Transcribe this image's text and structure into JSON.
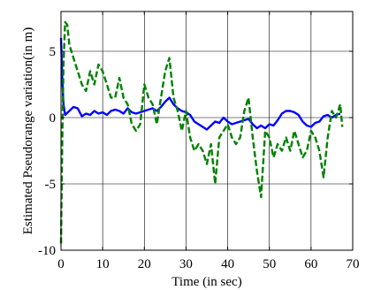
{
  "chart_data": {
    "type": "line",
    "title": "",
    "xlabel": "Time (in sec)",
    "ylabel": "Estimated Pseudorange variation(in m)",
    "xlim": [
      0,
      70
    ],
    "ylim": [
      -10,
      8
    ],
    "xticks": [
      0,
      10,
      20,
      30,
      40,
      50,
      60,
      70
    ],
    "yticks": [
      -10,
      -5,
      0,
      5
    ],
    "grid": true,
    "series": [
      {
        "color": "#0000ff",
        "line_style": "solid",
        "x": [
          0,
          0.3,
          0.6,
          1,
          2,
          3,
          4,
          5,
          6,
          7,
          8,
          9,
          10,
          11,
          12,
          13,
          14,
          15,
          16,
          17,
          18,
          19,
          20,
          21,
          22,
          23,
          24,
          25,
          26,
          27,
          28,
          29,
          30,
          31,
          32,
          33,
          34,
          35,
          36,
          37,
          38,
          39,
          40,
          41,
          42,
          43,
          44,
          45,
          46,
          47,
          48,
          49,
          50,
          51,
          52,
          53,
          54,
          55,
          56,
          57,
          58,
          59,
          60,
          61,
          62,
          63,
          64,
          65,
          66,
          67
        ],
        "y": [
          6,
          3,
          1,
          0.2,
          0.5,
          0.8,
          0.7,
          0.1,
          0.3,
          0.2,
          0.5,
          0.3,
          0.4,
          0.2,
          0.5,
          0.6,
          0.5,
          0.3,
          0.7,
          0.4,
          0.3,
          0.4,
          0.5,
          0.6,
          0.7,
          0.5,
          0.8,
          1.2,
          1.5,
          1.0,
          0.7,
          0.5,
          0.4,
          0.2,
          -0.3,
          -0.5,
          -0.7,
          -0.9,
          -0.6,
          -0.3,
          -0.4,
          0.0,
          -0.3,
          -0.5,
          -0.4,
          -0.3,
          -0.2,
          -0.1,
          -0.5,
          -0.8,
          -0.6,
          -0.8,
          -0.5,
          -0.6,
          -0.2,
          0.3,
          0.5,
          0.5,
          0.4,
          0.2,
          -0.3,
          -0.6,
          -0.7,
          -0.4,
          -0.3,
          0.1,
          0.2,
          0.0,
          0.2,
          0.3
        ]
      },
      {
        "color": "#008000",
        "line_style": "dashed",
        "x": [
          0,
          0.3,
          0.6,
          1,
          1.5,
          2,
          3,
          4,
          5,
          6,
          7,
          8,
          9,
          10,
          11,
          12,
          13,
          14,
          15,
          16,
          17,
          18,
          19,
          20,
          21,
          22,
          23,
          24,
          25,
          26,
          27,
          28,
          29,
          30,
          31,
          32,
          33,
          34,
          35,
          36,
          37,
          38,
          39,
          40,
          41,
          42,
          43,
          44,
          45,
          46,
          47,
          48,
          49,
          50,
          51,
          52,
          53,
          54,
          55,
          56,
          57,
          58,
          59,
          60,
          61,
          62,
          63,
          64,
          65,
          66,
          67,
          67.5
        ],
        "y": [
          -9.5,
          -2,
          4,
          7.2,
          7,
          5.5,
          4.5,
          3.5,
          2.5,
          2,
          3.5,
          2.5,
          4,
          3.5,
          2.5,
          1.5,
          1.5,
          3.0,
          1.5,
          1.0,
          -0.5,
          -1,
          -0.5,
          2.5,
          1.5,
          1.0,
          -0.5,
          1.5,
          3.5,
          4.5,
          1.5,
          0.5,
          -1,
          0.5,
          -1.5,
          -2.5,
          -2.0,
          -2.5,
          -3.5,
          -2.0,
          -5.0,
          -1.5,
          -1.0,
          -0.5,
          -1.5,
          -2.0,
          -1.5,
          0.5,
          1.5,
          -1.5,
          -4.0,
          -6.0,
          -1.0,
          -1.5,
          -3.0,
          -2.0,
          -2.5,
          -1.5,
          -2.5,
          -1.0,
          -2.0,
          -3.0,
          -2.5,
          -1.0,
          -1.5,
          -2.5,
          -4.5,
          -1.5,
          0.5,
          0.0,
          1.0,
          -0.7
        ]
      }
    ]
  }
}
